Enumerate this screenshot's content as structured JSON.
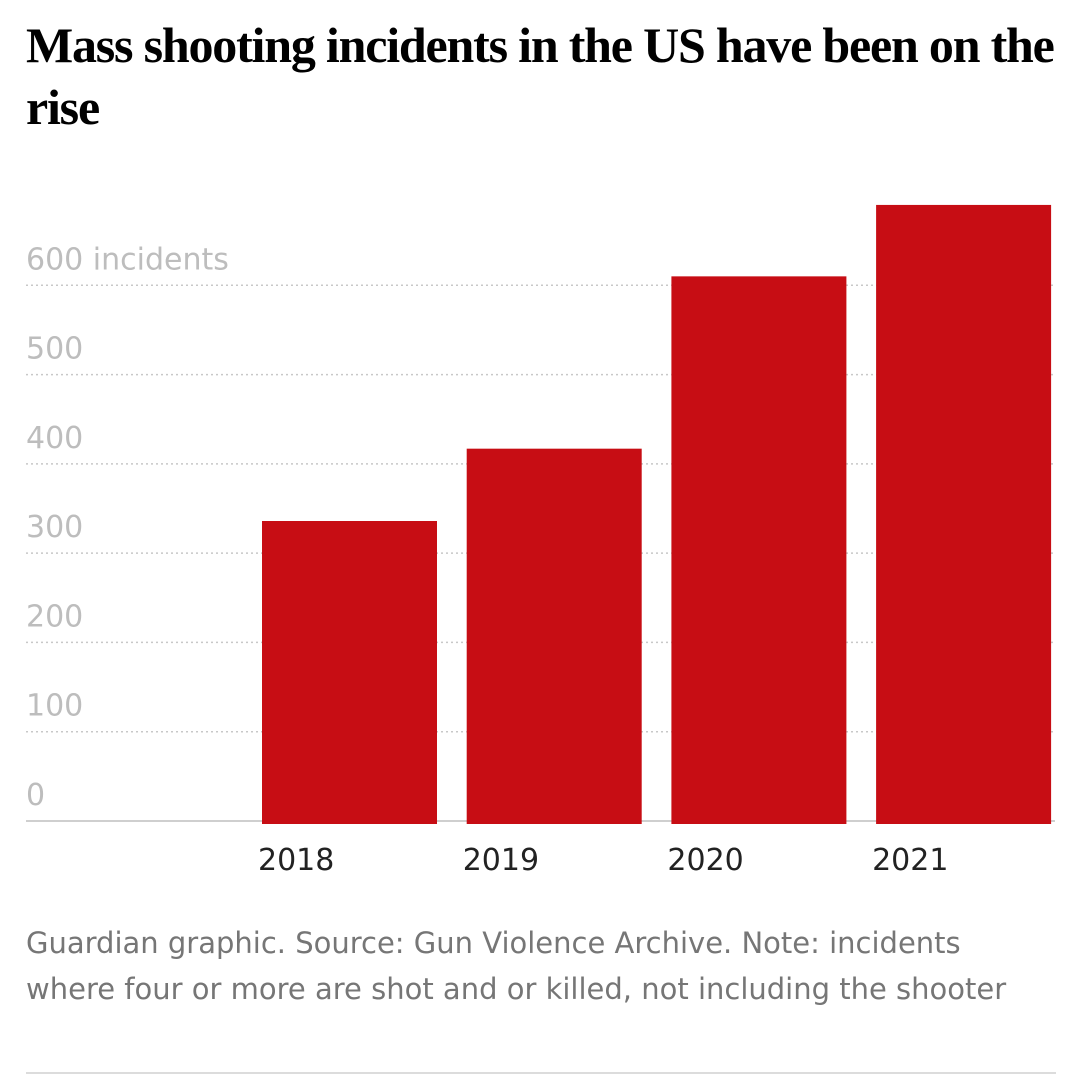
{
  "chart_data": {
    "type": "bar",
    "title": "Mass shooting incidents in the US have been on the rise",
    "categories": [
      "2018",
      "2019",
      "2020",
      "2021"
    ],
    "values": [
      336,
      417,
      610,
      690
    ],
    "color": "#c70d14",
    "ylim": [
      0,
      700
    ],
    "yticks": [
      0,
      100,
      200,
      300,
      400,
      500,
      {
        "value": 600,
        "label": "600 incidents"
      }
    ],
    "grid": true,
    "note": "Guardian graphic. Source: Gun Violence Archive. Note: incidents where four or more are shot and or killed, not including the shooter"
  }
}
